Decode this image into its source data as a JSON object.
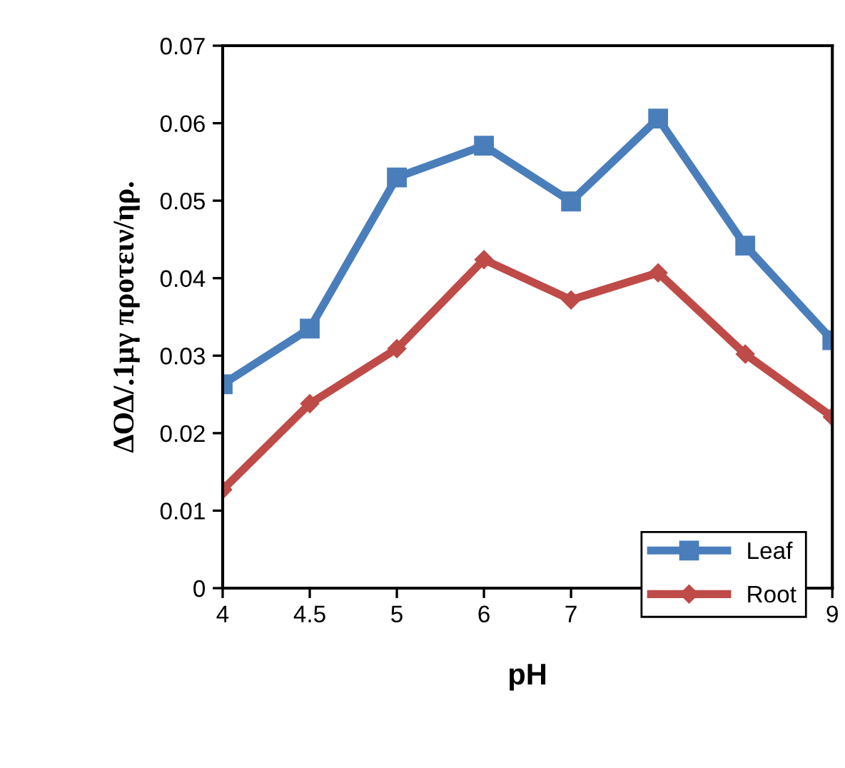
{
  "chart_data": {
    "type": "line",
    "xlabel": "pH",
    "ylabel": "ΔΟΔ/.1μγ προτειν/ηρ.",
    "categories": [
      "4",
      "4.5",
      "5",
      "6",
      "7",
      null,
      null,
      "9"
    ],
    "series": [
      {
        "name": "Leaf",
        "color": "#4a7ebb",
        "marker": "square",
        "values": [
          0.0263,
          0.0335,
          0.053,
          0.0571,
          0.0499,
          0.0606,
          0.0442,
          0.032
        ]
      },
      {
        "name": "Root",
        "color": "#be4b48",
        "marker": "diamond",
        "values": [
          0.0127,
          0.0238,
          0.0309,
          0.0424,
          0.0372,
          0.0407,
          0.0302,
          0.0221
        ]
      }
    ],
    "ylim": [
      0,
      0.07
    ],
    "yticks": [
      {
        "value": 0,
        "label": "0"
      },
      0.01,
      0.02,
      0.03,
      0.04,
      0.05,
      0.06,
      0.07
    ],
    "legend": "bottom right",
    "grid": false,
    "line_style": "solid"
  }
}
